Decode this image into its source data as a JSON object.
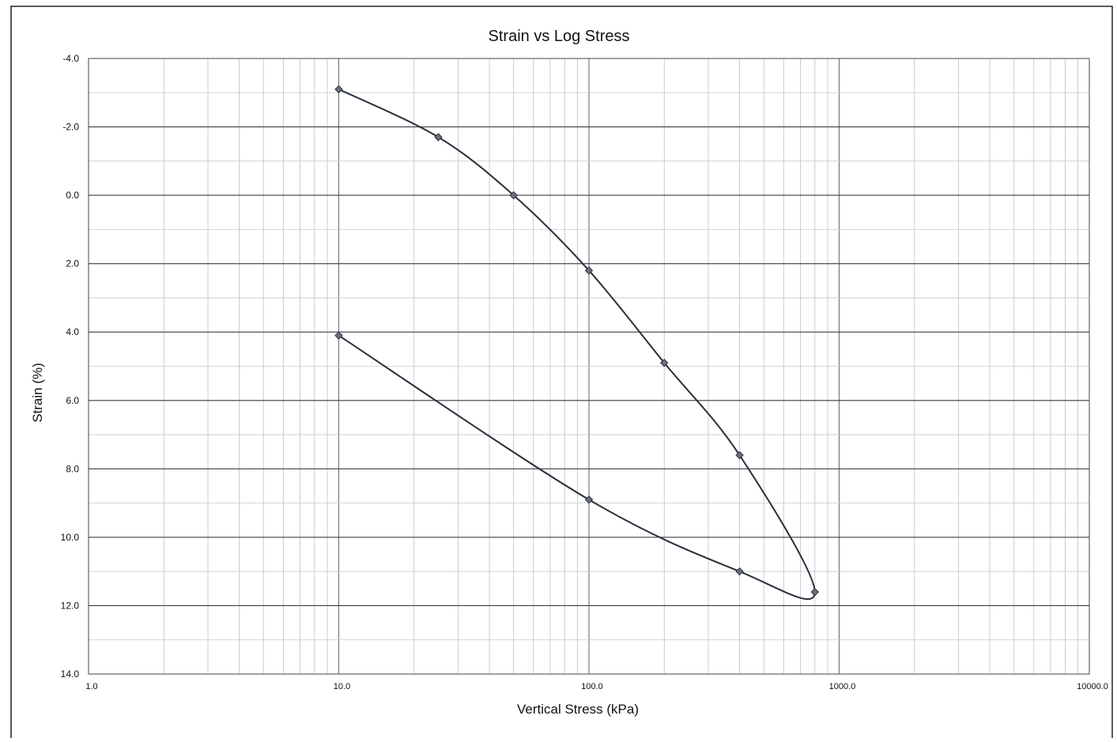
{
  "chart_data": {
    "type": "scatter",
    "title": "Strain vs Log Stress",
    "xlabel": "Vertical Stress (kPa)",
    "ylabel": "Strain (%)",
    "x_scale": "log",
    "xlim": [
      1.0,
      10000.0
    ],
    "ylim": [
      14.0,
      -4.0
    ],
    "y_axis_inverted": true,
    "x_tick_labels": [
      "1.0",
      "10.0",
      "100.0",
      "1000.0",
      "10000.0"
    ],
    "y_tick_labels": [
      "-4.0",
      "-2.0",
      "0.0",
      "2.0",
      "4.0",
      "6.0",
      "8.0",
      "10.0",
      "12.0",
      "14.0"
    ],
    "grid": true,
    "legend": "none",
    "line_style": "smoothed line with diamond markers",
    "line_color": "#2b2f3a",
    "marker_color": "#6b7080",
    "series": [
      {
        "points": [
          {
            "x": 10,
            "y": -3.1
          },
          {
            "x": 25,
            "y": -1.7
          },
          {
            "x": 50,
            "y": 0.0
          },
          {
            "x": 100,
            "y": 2.2
          },
          {
            "x": 200,
            "y": 4.9
          },
          {
            "x": 400,
            "y": 7.6
          },
          {
            "x": 800,
            "y": 11.6
          },
          {
            "x": 400,
            "y": 11.0
          },
          {
            "x": 100,
            "y": 8.9
          },
          {
            "x": 10,
            "y": 4.1
          }
        ]
      }
    ]
  }
}
